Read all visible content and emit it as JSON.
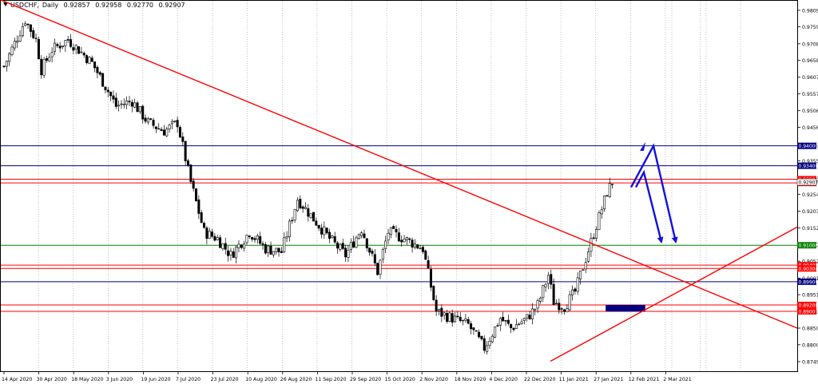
{
  "header": {
    "symbol": "USDCHF",
    "timeframe": "Daily",
    "open": "0.92857",
    "high": "0.92958",
    "low": "0.92770",
    "close": "0.92907"
  },
  "chart_data": {
    "type": "candlestick",
    "title": "",
    "xlabel": "",
    "ylabel": "",
    "grid": true,
    "ylim": [
      0.872,
      0.984
    ],
    "y_ticks": [
      0.9809,
      0.9759,
      0.9708,
      0.9658,
      0.9607,
      0.9557,
      0.9506,
      0.9456,
      0.94,
      0.9355,
      0.9304,
      0.9254,
      0.9203,
      0.9152,
      0.9102,
      0.9052,
      0.9001,
      0.8951,
      0.89,
      0.885,
      0.88,
      0.8749
    ],
    "x_ticks": [
      "14 Apr 2020",
      "30 Apr 2020",
      "18 May 2020",
      "3 Jun 2020",
      "19 Jun 2020",
      "7 Jul 2020",
      "23 Jul 2020",
      "10 Aug 2020",
      "26 Aug 2020",
      "11 Sep 2020",
      "29 Sep 2020",
      "15 Oct 2020",
      "2 Nov 2020",
      "18 Nov 2020",
      "4 Dec 2020",
      "22 Dec 2020",
      "11 Jan 2021",
      "27 Jan 2021",
      "12 Feb 2021",
      "2 Mar 2021"
    ],
    "candle_count": 236,
    "candle_anchors": [
      {
        "i": 0,
        "price": 0.964
      },
      {
        "i": 4,
        "price": 0.971
      },
      {
        "i": 8,
        "price": 0.978
      },
      {
        "i": 12,
        "price": 0.972
      },
      {
        "i": 14,
        "price": 0.963
      },
      {
        "i": 18,
        "price": 0.969
      },
      {
        "i": 24,
        "price": 0.972
      },
      {
        "i": 28,
        "price": 0.969
      },
      {
        "i": 33,
        "price": 0.965
      },
      {
        "i": 38,
        "price": 0.958
      },
      {
        "i": 42,
        "price": 0.952
      },
      {
        "i": 48,
        "price": 0.9535
      },
      {
        "i": 54,
        "price": 0.947
      },
      {
        "i": 60,
        "price": 0.9445
      },
      {
        "i": 65,
        "price": 0.947
      },
      {
        "i": 70,
        "price": 0.929
      },
      {
        "i": 75,
        "price": 0.914
      },
      {
        "i": 80,
        "price": 0.912
      },
      {
        "i": 85,
        "price": 0.907
      },
      {
        "i": 92,
        "price": 0.914
      },
      {
        "i": 98,
        "price": 0.909
      },
      {
        "i": 104,
        "price": 0.908
      },
      {
        "i": 110,
        "price": 0.924
      },
      {
        "i": 116,
        "price": 0.918
      },
      {
        "i": 122,
        "price": 0.912
      },
      {
        "i": 128,
        "price": 0.907
      },
      {
        "i": 134,
        "price": 0.915
      },
      {
        "i": 140,
        "price": 0.902
      },
      {
        "i": 144,
        "price": 0.914
      },
      {
        "i": 150,
        "price": 0.912
      },
      {
        "i": 157,
        "price": 0.909
      },
      {
        "i": 162,
        "price": 0.89
      },
      {
        "i": 168,
        "price": 0.888
      },
      {
        "i": 174,
        "price": 0.886
      },
      {
        "i": 180,
        "price": 0.879
      },
      {
        "i": 186,
        "price": 0.888
      },
      {
        "i": 190,
        "price": 0.885
      },
      {
        "i": 196,
        "price": 0.888
      },
      {
        "i": 200,
        "price": 0.892
      },
      {
        "i": 204,
        "price": 0.901
      },
      {
        "i": 206,
        "price": 0.893
      },
      {
        "i": 210,
        "price": 0.8915
      },
      {
        "i": 214,
        "price": 0.896
      },
      {
        "i": 218,
        "price": 0.906
      },
      {
        "i": 222,
        "price": 0.916
      },
      {
        "i": 226,
        "price": 0.926
      },
      {
        "i": 228,
        "price": 0.9291
      }
    ],
    "horizontal_levels": [
      {
        "price": 0.94,
        "color": "#000080",
        "label": "0.94000"
      },
      {
        "price": 0.934,
        "color": "#000080",
        "label": "0.93400"
      },
      {
        "price": 0.92994,
        "color": "#ff0000",
        "label": "0.92994"
      },
      {
        "price": 0.9288,
        "color": "#ff0000",
        "label": "0.92880"
      },
      {
        "price": 0.91,
        "color": "#008000",
        "label": "0.91000"
      },
      {
        "price": 0.904,
        "color": "#ff0000",
        "label": "0.90400"
      },
      {
        "price": 0.903,
        "color": "#ff0000",
        "label": "0.90300"
      },
      {
        "price": 0.899,
        "color": "#000080",
        "label": "0.89900"
      },
      {
        "price": 0.892,
        "color": "#ff0000",
        "label": "0.89200"
      },
      {
        "price": 0.89007,
        "color": "#ff0000",
        "label": "0.89007"
      }
    ],
    "current_price": 0.92907,
    "trend_lines": [
      {
        "from": {
          "date": "14 Apr 2020",
          "price": 0.984
        },
        "to": {
          "date": "after 2 Mar 2021",
          "price": 0.885
        },
        "color": "#ff0000"
      },
      {
        "from": {
          "date": "22 Dec 2020",
          "price": 0.875
        },
        "to": {
          "date": "after 2 Mar 2021",
          "price": 0.9155
        },
        "color": "#ff0000"
      }
    ],
    "projection_arrows": {
      "color": "#1010e0",
      "path_a": [
        0.9275,
        0.94,
        0.911
      ],
      "path_b": [
        0.9275,
        0.932,
        0.911
      ]
    },
    "box": {
      "from_date": "27 Jan 2021",
      "to_date": "12 Feb 2021",
      "top": 0.892,
      "bottom": 0.89,
      "color": "#000080"
    },
    "colors": {
      "candle": "#000000",
      "grid": "#c0c0c0",
      "background": "#ffffff"
    }
  }
}
